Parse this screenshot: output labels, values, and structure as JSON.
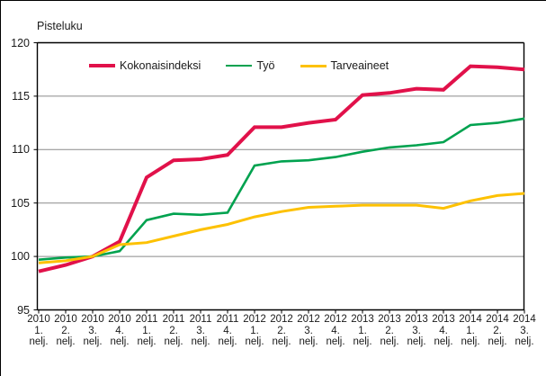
{
  "title": "Pisteluku",
  "legend": {
    "items": [
      {
        "label": "Kokonaisindeksi",
        "color": "#e1114a",
        "thickness": 4
      },
      {
        "label": "Työ",
        "color": "#00a24f",
        "thickness": 2.6
      },
      {
        "label": "Tarveaineet",
        "color": "#fdc101",
        "thickness": 3
      }
    ]
  },
  "chart_data": {
    "type": "line",
    "title": "Pisteluku",
    "xlabel": "",
    "ylabel": "Pisteluku",
    "ylim": [
      95,
      120
    ],
    "yticks": [
      120,
      115,
      110,
      105,
      100,
      95
    ],
    "grid": true,
    "grid_color": "#8a8a8a",
    "axis_color": "#000000",
    "legend_position": "top-inside",
    "x_tick_suffix": "nelj.",
    "categories": [
      {
        "year": "2010",
        "quarter": "1."
      },
      {
        "year": "2010",
        "quarter": "2."
      },
      {
        "year": "2010",
        "quarter": "3."
      },
      {
        "year": "2010",
        "quarter": "4."
      },
      {
        "year": "2011",
        "quarter": "1."
      },
      {
        "year": "2011",
        "quarter": "2."
      },
      {
        "year": "2011",
        "quarter": "3."
      },
      {
        "year": "2011",
        "quarter": "4."
      },
      {
        "year": "2012",
        "quarter": "1."
      },
      {
        "year": "2012",
        "quarter": "2."
      },
      {
        "year": "2012",
        "quarter": "3."
      },
      {
        "year": "2012",
        "quarter": "4."
      },
      {
        "year": "2013",
        "quarter": "1."
      },
      {
        "year": "2013",
        "quarter": "2."
      },
      {
        "year": "2013",
        "quarter": "3."
      },
      {
        "year": "2013",
        "quarter": "4."
      },
      {
        "year": "2014",
        "quarter": "1."
      },
      {
        "year": "2014",
        "quarter": "2."
      },
      {
        "year": "2014",
        "quarter": "3."
      }
    ],
    "series": [
      {
        "name": "Kokonaisindeksi",
        "color": "#e1114a",
        "stroke_width": 4,
        "values": [
          98.6,
          99.2,
          100.0,
          101.4,
          107.4,
          109.0,
          109.1,
          109.5,
          112.1,
          112.1,
          112.5,
          112.8,
          115.1,
          115.3,
          115.7,
          115.6,
          117.8,
          117.7,
          117.5
        ]
      },
      {
        "name": "Työ",
        "color": "#00a24f",
        "stroke_width": 2.6,
        "values": [
          99.7,
          99.9,
          100.0,
          100.5,
          103.4,
          104.0,
          103.9,
          104.1,
          108.5,
          108.9,
          109.0,
          109.3,
          109.8,
          110.2,
          110.4,
          110.7,
          112.3,
          112.5,
          112.9
        ]
      },
      {
        "name": "Tarveaineet",
        "color": "#fdc101",
        "stroke_width": 3,
        "values": [
          99.4,
          99.6,
          100.0,
          101.1,
          101.3,
          101.9,
          102.5,
          103.0,
          103.7,
          104.2,
          104.6,
          104.7,
          104.8,
          104.8,
          104.8,
          104.5,
          105.2,
          105.7,
          105.9
        ]
      }
    ]
  }
}
